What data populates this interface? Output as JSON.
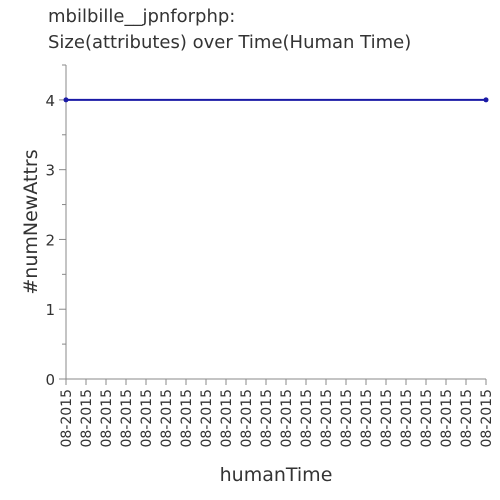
{
  "chart_data": {
    "type": "line",
    "title_lines": [
      "mbilbille__jpnforphp:",
      "Size(attributes) over Time(Human Time)"
    ],
    "xlabel": "humanTime",
    "ylabel": "#numNewAttrs",
    "x_tick_labels": [
      "08-2015",
      "08-2015",
      "08-2015",
      "08-2015",
      "08-2015",
      "08-2015",
      "08-2015",
      "08-2015",
      "08-2015",
      "08-2015",
      "08-2015",
      "08-2015",
      "08-2015",
      "08-2015",
      "08-2015",
      "08-2015",
      "08-2015",
      "08-2015",
      "08-2015",
      "08-2015",
      "08-2015",
      "08-2015"
    ],
    "y_ticks": [
      0,
      1,
      2,
      3,
      4
    ],
    "ylim": [
      0,
      4.5
    ],
    "series": [
      {
        "values": [
          4,
          4
        ]
      }
    ],
    "colors": {
      "line": "#1a1aa6",
      "axis": "#888888",
      "text": "#333333"
    },
    "grid": false
  }
}
